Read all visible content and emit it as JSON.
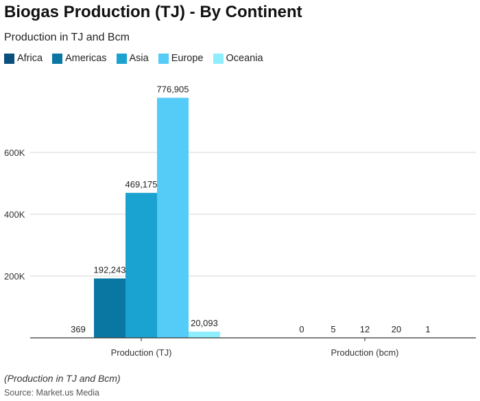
{
  "chart_data": {
    "type": "bar",
    "title": "Biogas Production (TJ) - By Continent",
    "subtitle": "Production in TJ and Bcm",
    "categories": [
      "Production (TJ)",
      "Production (bcm)"
    ],
    "series": [
      {
        "name": "Africa",
        "color": "#0b4f7c",
        "values": [
          369,
          0
        ]
      },
      {
        "name": "Americas",
        "color": "#0a77a3",
        "values": [
          192243,
          5
        ]
      },
      {
        "name": "Asia",
        "color": "#1aa3d0",
        "values": [
          469175,
          12
        ]
      },
      {
        "name": "Europe",
        "color": "#55cbf7",
        "values": [
          776905,
          20
        ]
      },
      {
        "name": "Oceania",
        "color": "#8eeefe",
        "values": [
          20093,
          1
        ]
      }
    ],
    "data_labels": [
      [
        "369",
        "192,243",
        "469,175",
        "776,905",
        "20,093"
      ],
      [
        "0",
        "5",
        "12",
        "20",
        "1"
      ]
    ],
    "yticks": [
      200000,
      400000,
      600000
    ],
    "ytick_labels": [
      "200K",
      "400K",
      "600K"
    ],
    "ylim": [
      0,
      776905
    ],
    "grid": true,
    "legend": "top-left",
    "note": "(Production in TJ and Bcm)",
    "source": "Source: Market.us Media"
  }
}
